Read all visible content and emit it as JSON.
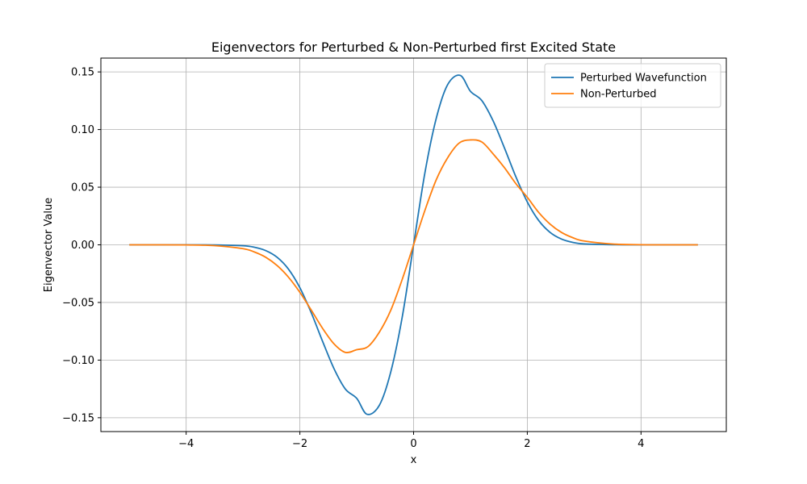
{
  "chart_data": {
    "type": "line",
    "title": "Eigenvectors for Perturbed & Non-Perturbed first Excited State",
    "xlabel": "x",
    "ylabel": "Eigenvector Value",
    "xlim": [
      -5.5,
      5.5
    ],
    "ylim": [
      -0.162,
      0.162
    ],
    "xticks": [
      -4,
      -2,
      0,
      2,
      4
    ],
    "xtick_labels": [
      "−4",
      "−2",
      "0",
      "2",
      "4"
    ],
    "yticks": [
      -0.15,
      -0.1,
      -0.05,
      0.0,
      0.05,
      0.1,
      0.15
    ],
    "ytick_labels": [
      "−0.15",
      "−0.10",
      "−0.05",
      "0.00",
      "0.05",
      "0.10",
      "0.15"
    ],
    "grid": true,
    "legend_position": "top-right",
    "series": [
      {
        "name": "Perturbed Wavefunction",
        "color": "#1f77b4",
        "x": [
          -5.0,
          -4.5,
          -4.0,
          -3.5,
          -3.0,
          -2.8,
          -2.6,
          -2.4,
          -2.2,
          -2.0,
          -1.8,
          -1.6,
          -1.4,
          -1.2,
          -1.0,
          -0.82,
          -0.6,
          -0.4,
          -0.2,
          0.0,
          0.2,
          0.4,
          0.6,
          0.82,
          1.0,
          1.2,
          1.4,
          1.6,
          1.8,
          2.0,
          2.2,
          2.4,
          2.6,
          2.8,
          3.0,
          3.5,
          4.0,
          4.5,
          5.0
        ],
        "y": [
          0.0,
          0.0,
          0.0,
          -0.0001,
          -0.0008,
          -0.0021,
          -0.005,
          -0.0108,
          -0.0211,
          -0.0372,
          -0.0589,
          -0.0838,
          -0.1074,
          -0.1251,
          -0.1332,
          -0.147,
          -0.139,
          -0.11,
          -0.0627,
          0.0,
          0.0627,
          0.11,
          0.139,
          0.147,
          0.1332,
          0.1251,
          0.1074,
          0.0838,
          0.0589,
          0.0372,
          0.0211,
          0.0108,
          0.005,
          0.0021,
          0.0008,
          0.0001,
          0.0,
          0.0,
          0.0
        ]
      },
      {
        "name": "Non-Perturbed",
        "color": "#ff7f0e",
        "x": [
          -5.0,
          -4.5,
          -4.0,
          -3.5,
          -3.0,
          -2.8,
          -2.6,
          -2.4,
          -2.2,
          -2.0,
          -1.8,
          -1.6,
          -1.4,
          -1.2,
          -1.0,
          -0.8,
          -0.6,
          -0.4,
          -0.2,
          0.0,
          0.2,
          0.4,
          0.6,
          0.8,
          1.0,
          1.2,
          1.4,
          1.6,
          1.8,
          2.0,
          2.2,
          2.4,
          2.6,
          2.8,
          3.0,
          3.5,
          4.0,
          4.5,
          5.0
        ],
        "y": [
          0.0,
          0.0,
          -0.0001,
          -0.0007,
          -0.0033,
          -0.0062,
          -0.0108,
          -0.018,
          -0.0281,
          -0.0412,
          -0.0566,
          -0.0725,
          -0.0859,
          -0.0933,
          -0.091,
          -0.0882,
          -0.0756,
          -0.0566,
          -0.03,
          0.0,
          0.03,
          0.0566,
          0.0756,
          0.0882,
          0.091,
          0.0892,
          0.0788,
          0.0668,
          0.053,
          0.0412,
          0.0281,
          0.018,
          0.0108,
          0.0062,
          0.0033,
          0.0007,
          0.0001,
          0.0,
          0.0
        ]
      }
    ]
  }
}
